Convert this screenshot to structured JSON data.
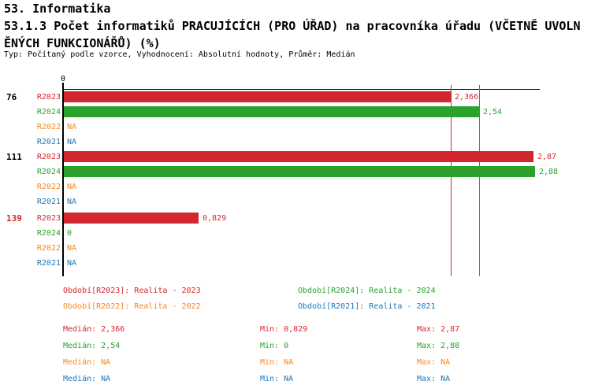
{
  "header": {
    "line1": "53. Informatika",
    "line2": "53.1.3 Počet informatiků PRACUJÍCÍCH (PRO ÚŘAD) na pracovníka úřadu (VČETNĚ UVOLN",
    "line3": "ĚNÝCH FUNKCIONÁŘŮ) (%)",
    "meta": "Typ: Počítaný podle vzorce, Vyhodnocení: Absolutní hodnoty, Průměr: Medián"
  },
  "colors": {
    "R2023": "#d2272d",
    "R2024": "#2ca22c",
    "R2022": "#f5871f",
    "R2021": "#1f77b4",
    "axis": "#000000"
  },
  "chart_data": {
    "type": "bar",
    "orientation": "horizontal",
    "unit": "%",
    "x_axis": {
      "zero_label": "0",
      "max": 2.91
    },
    "median_lines": [
      {
        "series": "R2023",
        "value": 2.366
      },
      {
        "series": "R2024",
        "value": 2.54
      }
    ],
    "groups": [
      {
        "label": "76",
        "label_color": "#000000",
        "rows": [
          {
            "series": "R2023",
            "value": 2.366,
            "value_label": "2,366"
          },
          {
            "series": "R2024",
            "value": 2.54,
            "value_label": "2,54"
          },
          {
            "series": "R2022",
            "value": null,
            "value_label": "NA"
          },
          {
            "series": "R2021",
            "value": null,
            "value_label": "NA"
          }
        ]
      },
      {
        "label": "111",
        "label_color": "#000000",
        "rows": [
          {
            "series": "R2023",
            "value": 2.87,
            "value_label": "2,87"
          },
          {
            "series": "R2024",
            "value": 2.88,
            "value_label": "2,88"
          },
          {
            "series": "R2022",
            "value": null,
            "value_label": "NA"
          },
          {
            "series": "R2021",
            "value": null,
            "value_label": "NA"
          }
        ]
      },
      {
        "label": "139",
        "label_color": "#d2272d",
        "rows": [
          {
            "series": "R2023",
            "value": 0.829,
            "value_label": "0,829"
          },
          {
            "series": "R2024",
            "value": 0,
            "value_label": "0"
          },
          {
            "series": "R2022",
            "value": null,
            "value_label": "NA"
          },
          {
            "series": "R2021",
            "value": null,
            "value_label": "NA"
          }
        ]
      }
    ]
  },
  "legend": {
    "items": [
      {
        "series": "R2023",
        "text": "Období[R2023]: Realita - 2023"
      },
      {
        "series": "R2024",
        "text": "Období[R2024]: Realita - 2024"
      },
      {
        "series": "R2022",
        "text": "Období[R2022]: Realita - 2022"
      },
      {
        "series": "R2021",
        "text": "Období[R2021]: Realita - 2021"
      }
    ]
  },
  "stats": {
    "labels": {
      "median": "Medián",
      "min": "Min",
      "max": "Max"
    },
    "rows": [
      {
        "series": "R2023",
        "median": "2,366",
        "min": "0,829",
        "max": "2,87"
      },
      {
        "series": "R2024",
        "median": "2,54",
        "min": "0",
        "max": "2,88"
      },
      {
        "series": "R2022",
        "median": "NA",
        "min": "NA",
        "max": "NA"
      },
      {
        "series": "R2021",
        "median": "NA",
        "min": "NA",
        "max": "NA"
      }
    ]
  }
}
